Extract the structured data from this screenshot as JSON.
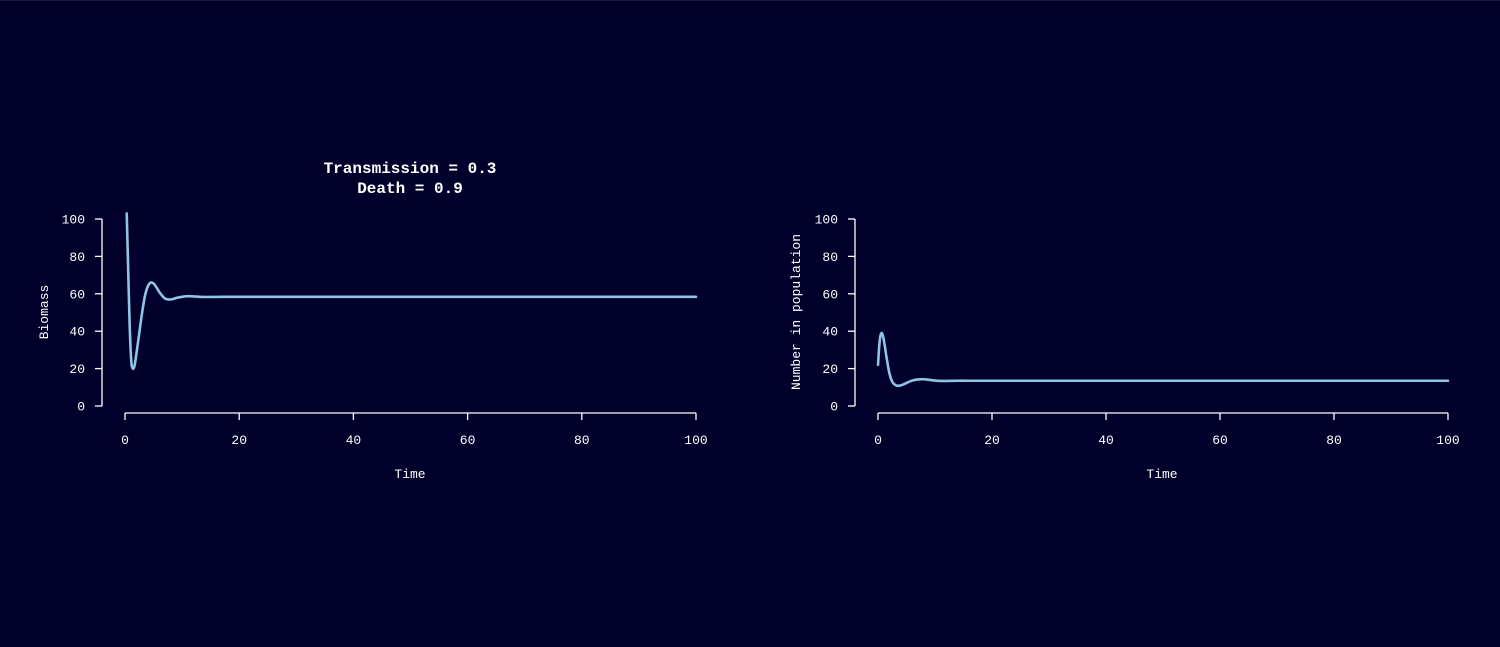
{
  "style": {
    "background": "#00002a",
    "foreground": "#ffffff",
    "series_color": "#8ec4e6"
  },
  "chart_data": [
    {
      "type": "line",
      "title_lines": [
        "Transmission = 0.3",
        "Death = 0.9"
      ],
      "xlabel": "Time",
      "ylabel": "Biomass",
      "xlim": [
        0,
        100
      ],
      "ylim": [
        0,
        100
      ],
      "x_ticks": [
        0,
        20,
        40,
        60,
        80,
        100
      ],
      "y_ticks": [
        0,
        20,
        40,
        60,
        80,
        100
      ],
      "x_tick_labels": [
        "0",
        "20",
        "40",
        "60",
        "80",
        "100"
      ],
      "y_tick_labels": [
        "0",
        "20",
        "40",
        "60",
        "80",
        "100"
      ],
      "grid": false,
      "series": [
        {
          "x": [
            0.3,
            0.5,
            0.8,
            1.1,
            1.4,
            1.7,
            2.0,
            2.5,
            3.0,
            3.5,
            4.0,
            4.5,
            5.0,
            5.5,
            6.0,
            6.5,
            7.0,
            7.5,
            8.0,
            8.5,
            9.0,
            10.0,
            11.0,
            12.0,
            13.0,
            14.0,
            15.0,
            17.0,
            20.0,
            30.0,
            50.0,
            100.0
          ],
          "y": [
            103,
            80,
            45,
            24,
            20,
            22,
            28,
            39,
            50,
            59,
            64,
            66,
            65.5,
            63.5,
            61,
            59,
            57.5,
            57,
            57,
            57.3,
            57.8,
            58.4,
            58.7,
            58.6,
            58.4,
            58.3,
            58.3,
            58.4,
            58.4,
            58.4,
            58.4,
            58.4
          ]
        }
      ]
    },
    {
      "type": "line",
      "title_lines": [],
      "xlabel": "Time",
      "ylabel": "Number in population",
      "xlim": [
        0,
        100
      ],
      "ylim": [
        0,
        100
      ],
      "x_ticks": [
        0,
        20,
        40,
        60,
        80,
        100
      ],
      "y_ticks": [
        0,
        20,
        40,
        60,
        80,
        100
      ],
      "x_tick_labels": [
        "0",
        "20",
        "40",
        "60",
        "80",
        "100"
      ],
      "y_tick_labels": [
        "0",
        "20",
        "40",
        "60",
        "80",
        "100"
      ],
      "grid": false,
      "series": [
        {
          "x": [
            0,
            0.3,
            0.6,
            0.9,
            1.2,
            1.5,
            2.0,
            2.5,
            3.0,
            3.5,
            4.0,
            4.5,
            5.0,
            6.0,
            7.0,
            8.0,
            9.0,
            10.0,
            11.0,
            12.0,
            14.0,
            16.0,
            20.0,
            30.0,
            50.0,
            100.0
          ],
          "y": [
            22,
            35,
            39,
            37,
            32,
            26,
            17.5,
            13,
            11.3,
            10.8,
            11.0,
            11.6,
            12.3,
            13.6,
            14.2,
            14.3,
            14.0,
            13.6,
            13.4,
            13.4,
            13.5,
            13.5,
            13.5,
            13.5,
            13.5,
            13.5
          ]
        }
      ]
    }
  ]
}
